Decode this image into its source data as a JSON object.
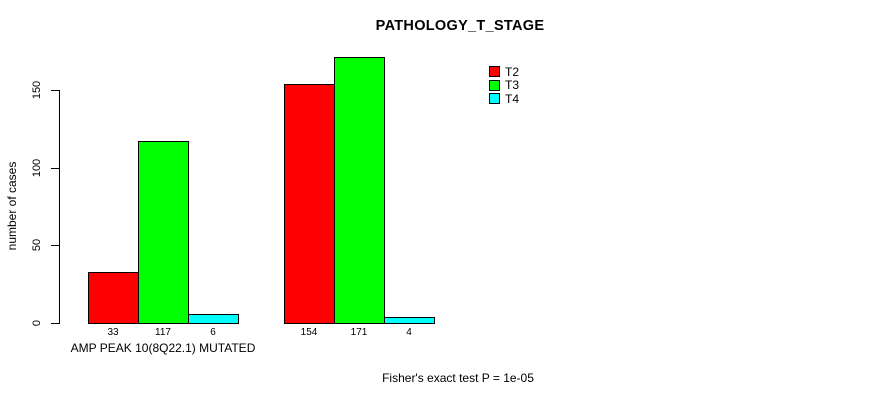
{
  "title": "PATHOLOGY_T_STAGE",
  "annotation": "Fisher's exact test P = 1e-05",
  "colors": {
    "t2": "#ff0000",
    "t3": "#00ff00",
    "t4": "#00ffff",
    "axis": "#000000",
    "background": "#ffffff"
  },
  "chart_data": {
    "type": "bar",
    "title": "PATHOLOGY_T_STAGE",
    "xlabel": "",
    "ylabel": "number of cases",
    "ylim": [
      0,
      150
    ],
    "yticks": [
      0,
      50,
      100,
      150
    ],
    "grid": false,
    "legend_position": "top-right",
    "categories": [
      "AMP PEAK 10(8Q22.1) MUTATED",
      ""
    ],
    "series": [
      {
        "name": "T2",
        "color": "#ff0000",
        "values": [
          33,
          154
        ]
      },
      {
        "name": "T3",
        "color": "#00ff00",
        "values": [
          117,
          171
        ]
      },
      {
        "name": "T4",
        "color": "#00ffff",
        "values": [
          6,
          4
        ]
      }
    ],
    "bar_value_labels": [
      [
        33,
        117,
        6
      ],
      [
        154,
        171,
        4
      ]
    ],
    "annotation": "Fisher's exact test P = 1e-05"
  }
}
